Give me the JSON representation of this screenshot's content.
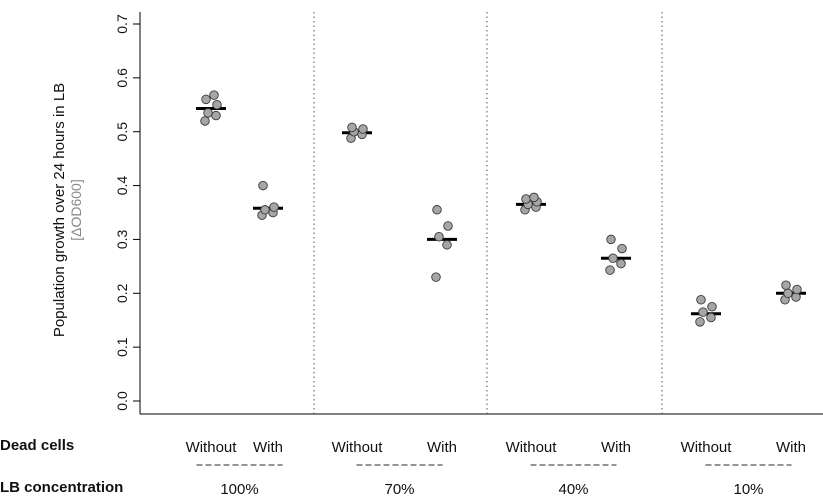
{
  "chart_data": {
    "type": "scatter",
    "ylabel": "Population growth over 24 hours in LB",
    "ylabel_unit": "[ΔOD600]",
    "ylim": [
      0,
      0.7
    ],
    "yticks": [
      "0.0",
      "0.1",
      "0.2",
      "0.3",
      "0.4",
      "0.5",
      "0.6",
      "0.7"
    ],
    "row_labels": {
      "dead_cells": "Dead cells",
      "lb_concentration": "LB concentration"
    },
    "groups": [
      {
        "dead_cells": "Without",
        "lb": "100%",
        "points": [
          0.52,
          0.53,
          0.535,
          0.55,
          0.56,
          0.568
        ],
        "median": 0.543
      },
      {
        "dead_cells": "With",
        "lb": "100%",
        "points": [
          0.345,
          0.35,
          0.355,
          0.36,
          0.4
        ],
        "median": 0.358
      },
      {
        "dead_cells": "Without",
        "lb": "70%",
        "points": [
          0.488,
          0.495,
          0.5,
          0.505,
          0.508
        ],
        "median": 0.498
      },
      {
        "dead_cells": "With",
        "lb": "70%",
        "points": [
          0.23,
          0.29,
          0.305,
          0.325,
          0.355
        ],
        "median": 0.3
      },
      {
        "dead_cells": "Without",
        "lb": "40%",
        "points": [
          0.355,
          0.36,
          0.365,
          0.37,
          0.375,
          0.378
        ],
        "median": 0.365
      },
      {
        "dead_cells": "With",
        "lb": "40%",
        "points": [
          0.243,
          0.255,
          0.265,
          0.283,
          0.3
        ],
        "median": 0.265
      },
      {
        "dead_cells": "Without",
        "lb": "10%",
        "points": [
          0.147,
          0.155,
          0.165,
          0.175,
          0.188
        ],
        "median": 0.162
      },
      {
        "dead_cells": "With",
        "lb": "10%",
        "points": [
          0.188,
          0.193,
          0.2,
          0.207,
          0.215
        ],
        "median": 0.2
      }
    ],
    "lb_labels": [
      "100%",
      "70%",
      "40%",
      "10%"
    ],
    "colors": {
      "point_fill": "#a6a6a6",
      "point_stroke": "#3a3a3a",
      "median": "#000000",
      "separator": "#555555"
    }
  }
}
